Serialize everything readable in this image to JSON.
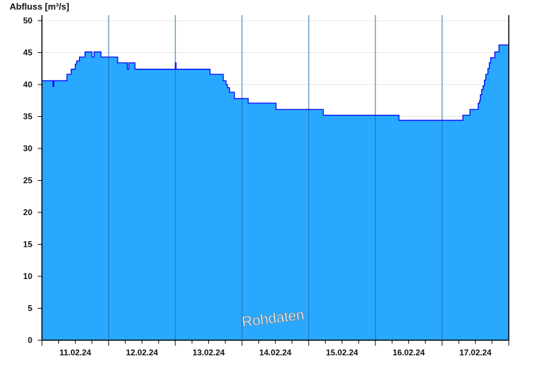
{
  "chart_data": {
    "type": "area",
    "title": "",
    "ylabel": "Abfluss [m³/s]",
    "xlabel": "",
    "ylim": [
      0,
      50
    ],
    "yticks": [
      0,
      5,
      10,
      15,
      20,
      25,
      30,
      35,
      40,
      45,
      50
    ],
    "xlim": [
      "11.02.24 00:00",
      "18.02.24 00:00"
    ],
    "xtick_labels": [
      "11.02.24",
      "12.02.24",
      "13.02.24",
      "14.02.24",
      "15.02.24",
      "16.02.24",
      "17.02.24"
    ],
    "grid": true,
    "step": true,
    "watermark": "Rohdaten",
    "colors": {
      "fill": "#29a8ff",
      "line": "#0000ff",
      "dayline": "#1f6f9f",
      "grid": "#e6e6e6"
    },
    "series": [
      {
        "points": [
          [
            "11.02.24 00:00",
            40.6
          ],
          [
            "11.02.24 04:00",
            39.7
          ],
          [
            "11.02.24 04:15",
            40.6
          ],
          [
            "11.02.24 09:00",
            41.6
          ],
          [
            "11.02.24 10:30",
            42.4
          ],
          [
            "11.02.24 12:00",
            43.2
          ],
          [
            "11.02.24 12:30",
            43.7
          ],
          [
            "11.02.24 13:30",
            44.3
          ],
          [
            "11.02.24 15:30",
            45.1
          ],
          [
            "11.02.24 18:00",
            44.3
          ],
          [
            "11.02.24 18:45",
            45.1
          ],
          [
            "11.02.24 21:15",
            44.3
          ],
          [
            "12.02.24 03:15",
            43.4
          ],
          [
            "12.02.24 06:45",
            42.4
          ],
          [
            "12.02.24 07:15",
            43.4
          ],
          [
            "12.02.24 09:30",
            42.4
          ],
          [
            "13.02.24 00:00",
            43.4
          ],
          [
            "13.02.24 00:15",
            42.4
          ],
          [
            "13.02.24 12:30",
            41.6
          ],
          [
            "13.02.24 17:15",
            40.6
          ],
          [
            "13.02.24 18:15",
            40.0
          ],
          [
            "13.02.24 18:45",
            39.5
          ],
          [
            "13.02.24 19:30",
            38.8
          ],
          [
            "13.02.24 21:15",
            37.8
          ],
          [
            "14.02.24 02:15",
            37.1
          ],
          [
            "14.02.24 12:15",
            36.1
          ],
          [
            "15.02.24 05:15",
            35.2
          ],
          [
            "16.02.24 08:30",
            34.4
          ],
          [
            "17.02.24 07:30",
            35.2
          ],
          [
            "17.02.24 10:00",
            36.1
          ],
          [
            "17.02.24 13:00",
            37.1
          ],
          [
            "17.02.24 13:30",
            37.5
          ],
          [
            "17.02.24 13:45",
            38.4
          ],
          [
            "17.02.24 14:15",
            39.2
          ],
          [
            "17.02.24 14:45",
            39.8
          ],
          [
            "17.02.24 15:15",
            40.7
          ],
          [
            "17.02.24 15:45",
            41.6
          ],
          [
            "17.02.24 16:30",
            42.5
          ],
          [
            "17.02.24 17:00",
            43.4
          ],
          [
            "17.02.24 17:30",
            44.2
          ],
          [
            "17.02.24 19:00",
            45.1
          ],
          [
            "17.02.24 20:30",
            46.2
          ],
          [
            "18.02.24 00:00",
            46.2
          ]
        ]
      }
    ]
  }
}
